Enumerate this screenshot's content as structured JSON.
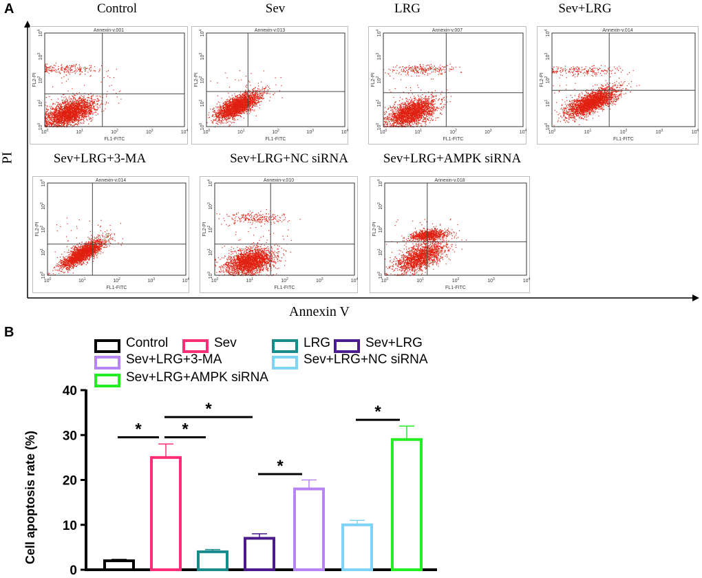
{
  "panel_a": {
    "letter": "A",
    "y_label": "PI",
    "x_label": "Annexin V",
    "plots": [
      {
        "title": "Control",
        "file": "Annexin-v.001"
      },
      {
        "title": "Sev",
        "file": "Annexin-v.013"
      },
      {
        "title": "LRG",
        "file": "Annexin-v.007"
      },
      {
        "title": "Sev+LRG",
        "file": "Annexin-v.014"
      },
      {
        "title": "Sev+LRG+3-MA",
        "file": "Annexin-v.014"
      },
      {
        "title": "Sev+LRG+NC siRNA",
        "file": "Annexin-v.010"
      },
      {
        "title": "Sev+LRG+AMPK siRNA",
        "file": "Annexin-v.018"
      }
    ],
    "plot_y_axis": "FL2-PI",
    "plot_x_axis": "FL1-FITC",
    "tick_base": "10",
    "tick_exponents": [
      "0",
      "1",
      "2",
      "3",
      "4"
    ],
    "dot_color": "#e02010"
  },
  "chart_data": {
    "type": "bar",
    "panel_letter": "B",
    "ylabel": "Cell apoptosis rate (%)",
    "ylim": [
      0,
      40
    ],
    "yticks": [
      "0",
      "10",
      "20",
      "30",
      "40"
    ],
    "categories": [
      "Control",
      "Sev",
      "LRG",
      "Sev+LRG",
      "Sev+LRG+3-MA",
      "Sev+LRG+NC siRNA",
      "Sev+LRG+AMPK siRNA"
    ],
    "values": [
      2,
      25,
      4,
      7,
      18,
      10,
      29
    ],
    "error_upper": [
      2.3,
      28,
      4.5,
      8,
      20,
      11,
      32
    ],
    "colors": [
      "#000000",
      "#ff2d78",
      "#1a8a8a",
      "#4b1a8c",
      "#b784f5",
      "#7fd3f7",
      "#22ee22"
    ],
    "legend_placement": "top",
    "significance": [
      {
        "from": 0,
        "to": 1,
        "y": 29.5,
        "label": "*"
      },
      {
        "from": 1,
        "to": 2,
        "y": 29.5,
        "label": "*"
      },
      {
        "from": 1,
        "to": 3,
        "y": 34,
        "label": "*"
      },
      {
        "from": 3,
        "to": 4,
        "y": 21.3,
        "label": "*"
      },
      {
        "from": 5,
        "to": 6,
        "y": 33.4,
        "label": "*"
      }
    ]
  }
}
